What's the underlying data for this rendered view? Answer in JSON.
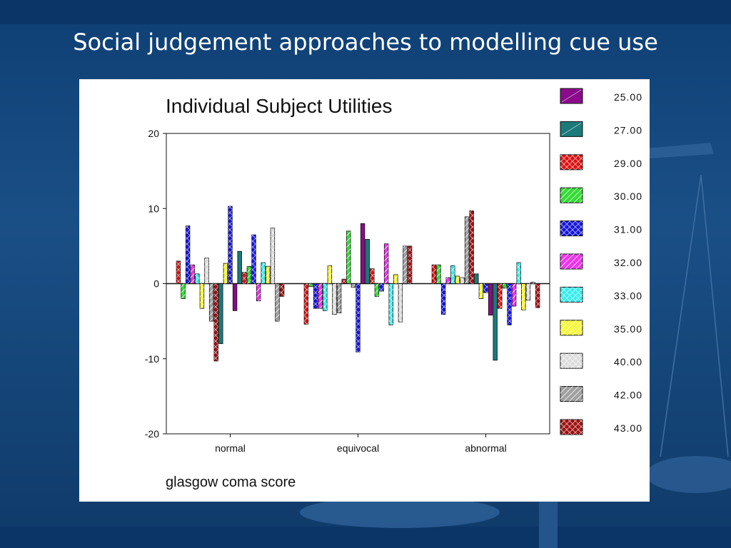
{
  "slide": {
    "title": "Social judgement approaches to modelling cue use"
  },
  "colors": {
    "25.00": "#8b0a8b",
    "27.00": "#1a7a7a",
    "29.00": "#e01010",
    "30.00": "#33dd33",
    "31.00": "#1414e0",
    "32.00": "#ee33ee",
    "33.00": "#33eeee",
    "35.00": "#f8f838",
    "40.00": "#dcdcdc",
    "42.00": "#a0a0a0",
    "43.00": "#a01010"
  },
  "chart_data": {
    "type": "bar",
    "title": "Individual Subject Utilities",
    "xlabel": "glasgow coma score",
    "ylabel": "",
    "ylim": [
      -20,
      20
    ],
    "yticks": [
      20,
      10,
      0,
      -10,
      -20
    ],
    "categories": [
      "normal",
      "equivocal",
      "abnormal"
    ],
    "legend_position": "right",
    "bars": {
      "normal": [
        {
          "s": "29.00",
          "v": 3.0
        },
        {
          "s": "30.00",
          "v": -2.0
        },
        {
          "s": "31.00",
          "v": 7.7
        },
        {
          "s": "32.00",
          "v": 2.5
        },
        {
          "s": "33.00",
          "v": 1.3
        },
        {
          "s": "35.00",
          "v": -3.3
        },
        {
          "s": "40.00",
          "v": 3.4
        },
        {
          "s": "42.00",
          "v": -5.0
        },
        {
          "s": "43.00",
          "v": -10.3
        },
        {
          "s": "27.00",
          "v": -8.0
        },
        {
          "s": "35.00",
          "v": 2.7
        },
        {
          "s": "31.00",
          "v": 10.3
        },
        {
          "s": "25.00",
          "v": -3.6
        },
        {
          "s": "27.00",
          "v": 4.3
        },
        {
          "s": "29.00",
          "v": 1.5
        },
        {
          "s": "30.00",
          "v": 2.3
        },
        {
          "s": "31.00",
          "v": 6.5
        },
        {
          "s": "32.00",
          "v": -2.3
        },
        {
          "s": "33.00",
          "v": 2.8
        },
        {
          "s": "35.00",
          "v": 2.3
        },
        {
          "s": "40.00",
          "v": 7.4
        },
        {
          "s": "42.00",
          "v": -5.0
        },
        {
          "s": "43.00",
          "v": -1.7
        }
      ],
      "equivocal": [
        {
          "s": "29.00",
          "v": -5.4
        },
        {
          "s": "30.00",
          "v": -0.4
        },
        {
          "s": "31.00",
          "v": -3.3
        },
        {
          "s": "32.00",
          "v": -3.3
        },
        {
          "s": "33.00",
          "v": -3.6
        },
        {
          "s": "35.00",
          "v": 2.4
        },
        {
          "s": "40.00",
          "v": -4.1
        },
        {
          "s": "42.00",
          "v": -3.9
        },
        {
          "s": "43.00",
          "v": 0.6
        },
        {
          "s": "30.00",
          "v": 7.0
        },
        {
          "s": "42.00",
          "v": -0.5
        },
        {
          "s": "31.00",
          "v": -9.1
        },
        {
          "s": "25.00",
          "v": 8.0
        },
        {
          "s": "27.00",
          "v": 5.9
        },
        {
          "s": "29.00",
          "v": 2.0
        },
        {
          "s": "30.00",
          "v": -1.7
        },
        {
          "s": "31.00",
          "v": -1.0
        },
        {
          "s": "32.00",
          "v": 5.3
        },
        {
          "s": "33.00",
          "v": -5.5
        },
        {
          "s": "35.00",
          "v": 1.2
        },
        {
          "s": "40.00",
          "v": -5.1
        },
        {
          "s": "42.00",
          "v": 5.0
        },
        {
          "s": "43.00",
          "v": 5.0
        }
      ],
      "abnormal": [
        {
          "s": "29.00",
          "v": 2.5
        },
        {
          "s": "30.00",
          "v": 2.5
        },
        {
          "s": "31.00",
          "v": -4.1
        },
        {
          "s": "32.00",
          "v": 0.8
        },
        {
          "s": "33.00",
          "v": 2.4
        },
        {
          "s": "35.00",
          "v": 1.0
        },
        {
          "s": "40.00",
          "v": 0.8
        },
        {
          "s": "42.00",
          "v": 8.9
        },
        {
          "s": "43.00",
          "v": 9.7
        },
        {
          "s": "27.00",
          "v": 1.3
        },
        {
          "s": "35.00",
          "v": -2.0
        },
        {
          "s": "31.00",
          "v": -1.2
        },
        {
          "s": "25.00",
          "v": -4.2
        },
        {
          "s": "27.00",
          "v": -10.2
        },
        {
          "s": "29.00",
          "v": -3.3
        },
        {
          "s": "30.00",
          "v": -0.6
        },
        {
          "s": "31.00",
          "v": -5.5
        },
        {
          "s": "32.00",
          "v": -3.0
        },
        {
          "s": "33.00",
          "v": 2.8
        },
        {
          "s": "35.00",
          "v": -3.5
        },
        {
          "s": "40.00",
          "v": -2.2
        },
        {
          "s": "42.00",
          "v": 0.2
        },
        {
          "s": "43.00",
          "v": -3.2
        }
      ]
    },
    "series": [
      {
        "name": "25.00"
      },
      {
        "name": "27.00"
      },
      {
        "name": "29.00"
      },
      {
        "name": "30.00"
      },
      {
        "name": "31.00"
      },
      {
        "name": "32.00"
      },
      {
        "name": "33.00"
      },
      {
        "name": "35.00"
      },
      {
        "name": "40.00"
      },
      {
        "name": "42.00"
      },
      {
        "name": "43.00"
      }
    ]
  }
}
